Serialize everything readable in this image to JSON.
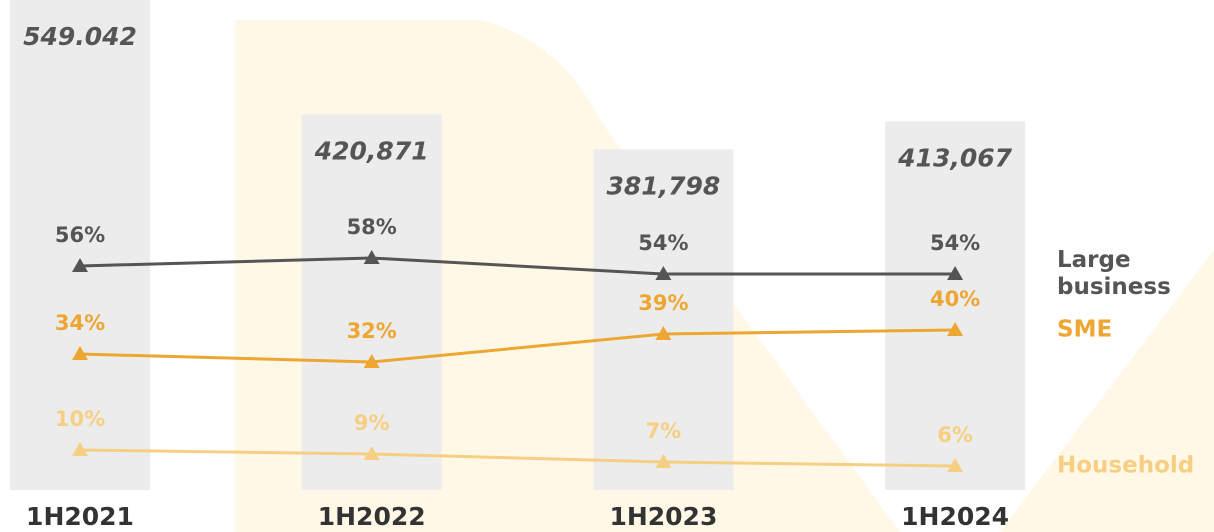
{
  "chart_data": {
    "type": "bar-line",
    "categories": [
      "1H2021",
      "1H2022",
      "1H2023",
      "1H2024"
    ],
    "values": [
      549042,
      420871,
      381798,
      413067
    ],
    "value_labels": [
      "549.042",
      "420,871",
      "381,798",
      "413,067"
    ],
    "color": "#ececec",
    "y2lim": [
      0,
      100
    ],
    "series": [
      {
        "name": "Large business",
        "color": "#555555",
        "axis": "y2",
        "values": [
          56,
          58,
          54,
          54
        ],
        "value_labels": [
          "56%",
          "58%",
          "54%",
          "54%"
        ]
      },
      {
        "name": "SME",
        "color": "#eea632",
        "axis": "y2",
        "values": [
          34,
          32,
          39,
          40
        ],
        "value_labels": [
          "34%",
          "32%",
          "39%",
          "40%"
        ]
      },
      {
        "name": "Household",
        "color": "#f6cf82",
        "axis": "y2",
        "values": [
          10,
          9,
          7,
          6
        ],
        "value_labels": [
          "10%",
          "9%",
          "7%",
          "6%"
        ]
      }
    ]
  }
}
